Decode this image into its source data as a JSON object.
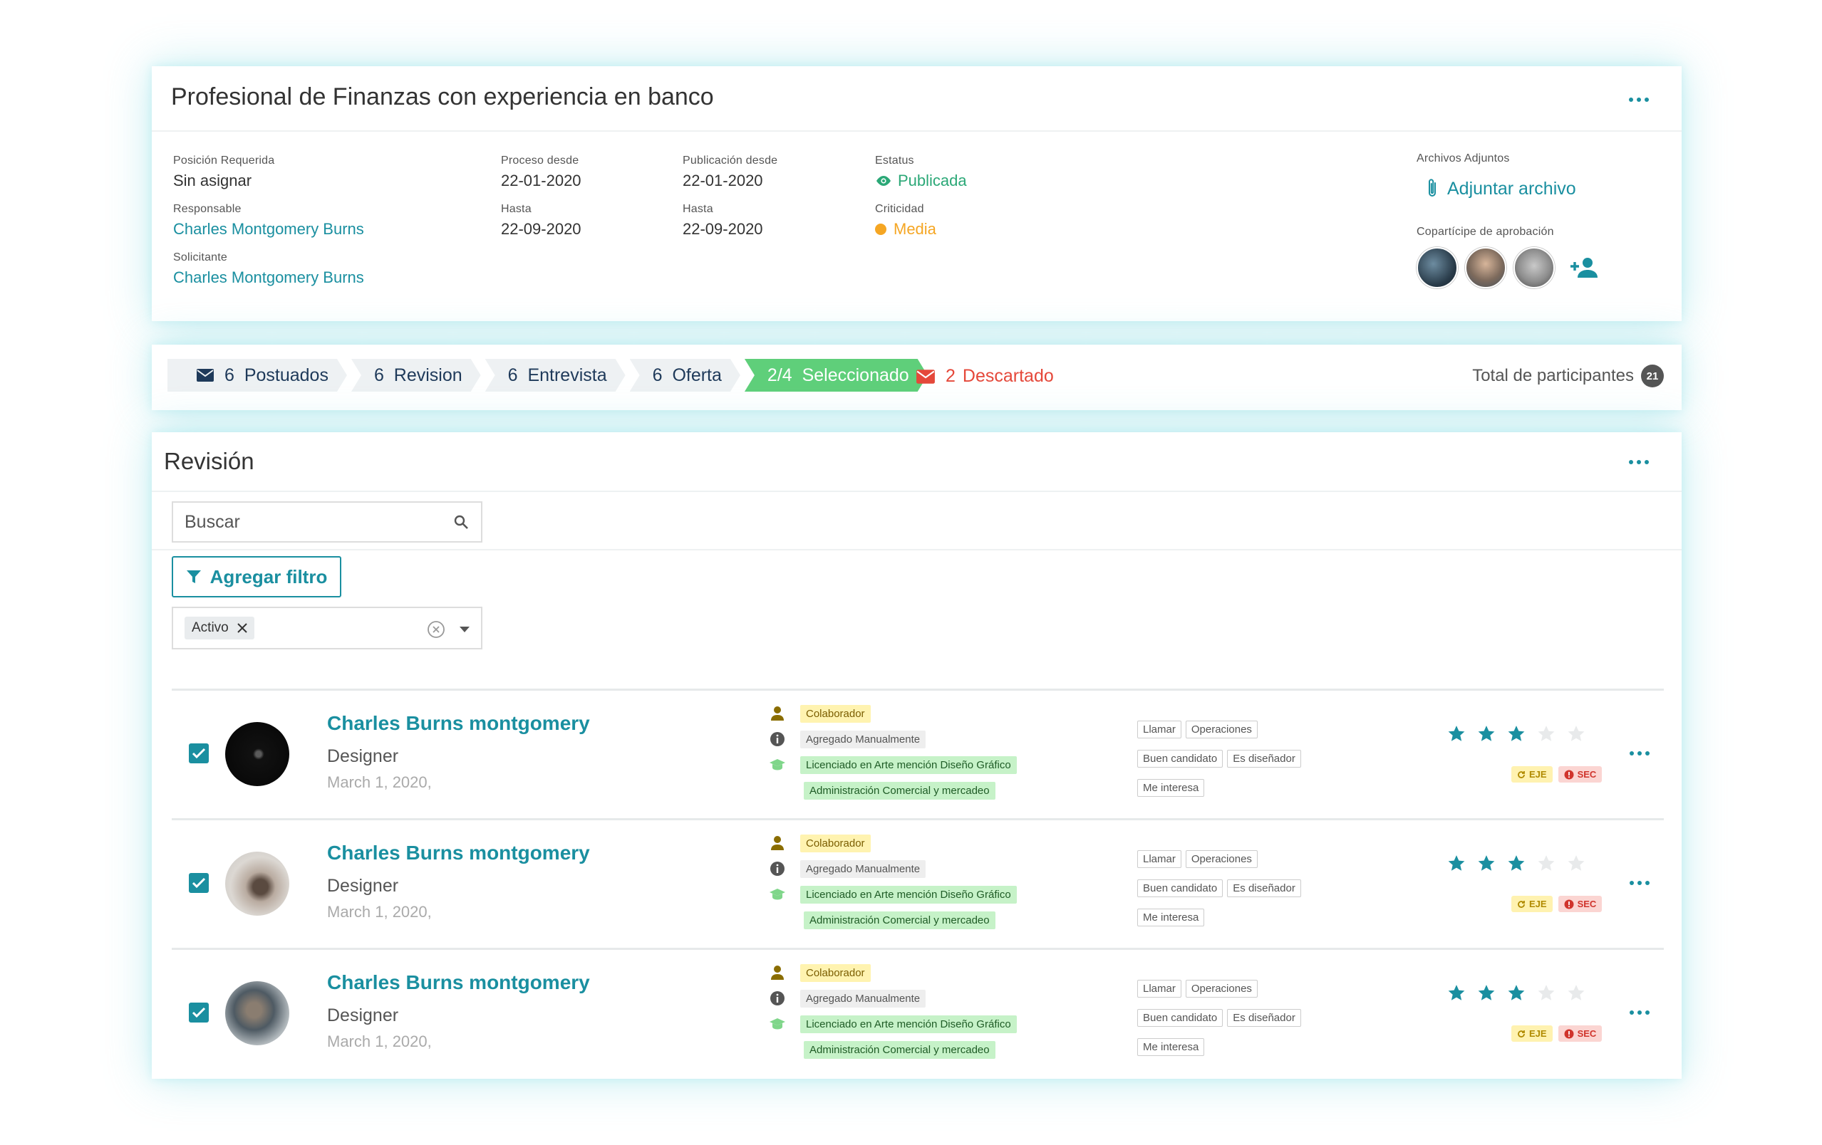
{
  "job": {
    "title": "Profesional de Finanzas con experiencia en banco",
    "fields": {
      "posicion_label": "Posición Requerida",
      "posicion_value": "Sin asignar",
      "responsable_label": "Responsable",
      "responsable_value": "Charles Montgomery Burns",
      "solicitante_label": "Solicitante",
      "solicitante_value": "Charles Montgomery Burns",
      "proceso_label": "Proceso desde",
      "proceso_value": "22-01-2020",
      "proceso_hasta_label": "Hasta",
      "proceso_hasta_value": "22-09-2020",
      "publicacion_label": "Publicación desde",
      "publicacion_value": "22-01-2020",
      "publicacion_hasta_label": "Hasta",
      "publicacion_hasta_value": "22-09-2020",
      "estatus_label": "Estatus",
      "estatus_value": "Publicada",
      "criticidad_label": "Criticidad",
      "criticidad_value": "Media"
    },
    "attachments_label": "Archivos Adjuntos",
    "attach_button": "Adjuntar archivo",
    "approvers_label": "Copartícipe de aprobación"
  },
  "pipeline": {
    "stages": [
      {
        "count": "6",
        "label": "Postuados"
      },
      {
        "count": "6",
        "label": "Revision"
      },
      {
        "count": "6",
        "label": "Entrevista"
      },
      {
        "count": "6",
        "label": "Oferta"
      },
      {
        "count": "2/4",
        "label": "Seleccionado"
      }
    ],
    "discarded_count": "2",
    "discarded_label": "Descartado",
    "total_label": "Total de participantes",
    "total_count": "21"
  },
  "review": {
    "title": "Revisión",
    "search_placeholder": "Buscar",
    "filter_button": "Agregar filtro",
    "active_chip": "Activo",
    "candidates": [
      {
        "name": "Charles Burns montgomery",
        "role": "Designer",
        "date": "March 1, 2020,",
        "tag_colaborador": "Colaborador",
        "tag_agregado": "Agregado Manualmente",
        "tag_edu1": "Licenciado en Arte mención Diseño Gráfico",
        "tag_edu2": "Administración Comercial y mercadeo",
        "kw": [
          "Llamar",
          "Operaciones",
          "Buen candidato",
          "Es diseñador",
          "Me interesa"
        ],
        "rating": 3,
        "badge_eje": "EJE",
        "badge_sec": "SEC"
      },
      {
        "name": "Charles Burns montgomery",
        "role": "Designer",
        "date": "March 1, 2020,",
        "tag_colaborador": "Colaborador",
        "tag_agregado": "Agregado Manualmente",
        "tag_edu1": "Licenciado en Arte mención Diseño Gráfico",
        "tag_edu2": "Administración Comercial y mercadeo",
        "kw": [
          "Llamar",
          "Operaciones",
          "Buen candidato",
          "Es diseñador",
          "Me interesa"
        ],
        "rating": 3,
        "badge_eje": "EJE",
        "badge_sec": "SEC"
      },
      {
        "name": "Charles Burns montgomery",
        "role": "Designer",
        "date": "March 1, 2020,",
        "tag_colaborador": "Colaborador",
        "tag_agregado": "Agregado Manualmente",
        "tag_edu1": "Licenciado en Arte mención Diseño Gráfico",
        "tag_edu2": "Administración Comercial y mercadeo",
        "kw": [
          "Llamar",
          "Operaciones",
          "Buen candidato",
          "Es diseñador",
          "Me interesa"
        ],
        "rating": 3,
        "badge_eje": "EJE",
        "badge_sec": "SEC"
      }
    ]
  },
  "colors": {
    "accent": "#1a8fa0",
    "active_stage": "#5fcf7a",
    "discard": "#e5483a",
    "status_green": "#2ba877",
    "criticidad_orange": "#f5a623"
  }
}
